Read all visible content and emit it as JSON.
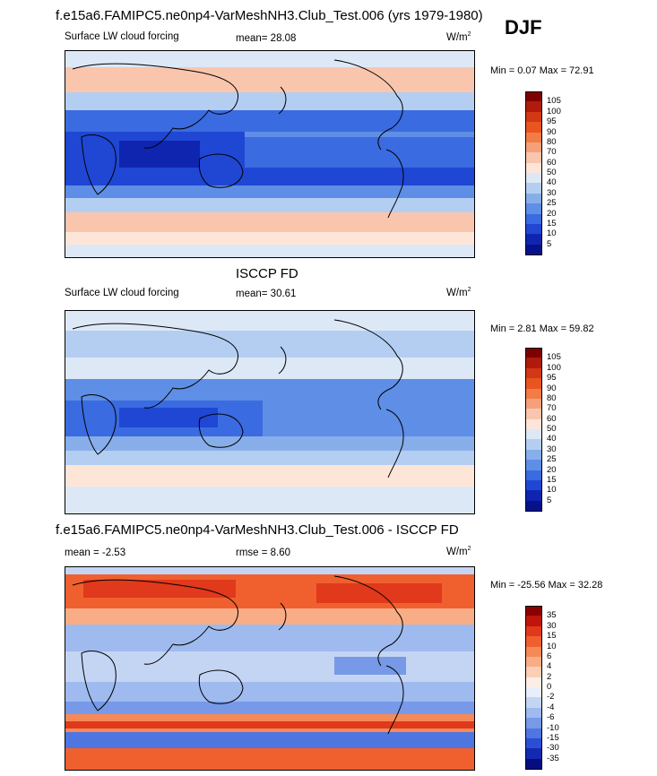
{
  "figure": {
    "season": "DJF",
    "panels": [
      {
        "id": "model",
        "heading": "f.e15a6.FAMIPC5.ne0np4-VarMeshNH3.Club_Test.006 (yrs 1979-1980)",
        "left_label": "Surface LW cloud forcing",
        "center_label": "mean=  28.08",
        "units": "W/m",
        "units_exp": "2",
        "minmax": "Min =   0.07 Max =  72.91",
        "colorbar": {
          "ticks": [
            "105",
            "100",
            "95",
            "90",
            "80",
            "70",
            "60",
            "50",
            "40",
            "30",
            "25",
            "20",
            "15",
            "10",
            "5"
          ],
          "colors": [
            "#800000",
            "#b01b0b",
            "#d23716",
            "#e8551f",
            "#f27c45",
            "#f5a07b",
            "#f9c6ad",
            "#fde6d8",
            "#dde8f7",
            "#b4cef2",
            "#88aeea",
            "#5f8ee6",
            "#3b6be0",
            "#1f47d4",
            "#0f25b0",
            "#06128b"
          ]
        }
      },
      {
        "id": "obs",
        "heading": "ISCCP FD",
        "left_label": "Surface LW cloud forcing",
        "center_label": "mean=  30.61",
        "units": "W/m",
        "units_exp": "2",
        "minmax": "Min =   2.81 Max =  59.82",
        "colorbar": {
          "ticks": [
            "105",
            "100",
            "95",
            "90",
            "80",
            "70",
            "60",
            "50",
            "40",
            "30",
            "25",
            "20",
            "15",
            "10",
            "5"
          ],
          "colors": [
            "#800000",
            "#b01b0b",
            "#d23716",
            "#e8551f",
            "#f27c45",
            "#f5a07b",
            "#f9c6ad",
            "#fde6d8",
            "#dde8f7",
            "#b4cef2",
            "#88aeea",
            "#5f8ee6",
            "#3b6be0",
            "#1f47d4",
            "#0f25b0",
            "#06128b"
          ]
        }
      },
      {
        "id": "diff",
        "heading": "f.e15a6.FAMIPC5.ne0np4-VarMeshNH3.Club_Test.006 - ISCCP FD",
        "left_label": "mean =  -2.53",
        "center_label": "rmse =   8.60",
        "units": "W/m",
        "units_exp": "2",
        "minmax": "Min = -25.56 Max =  32.28",
        "colorbar": {
          "ticks": [
            "35",
            "30",
            "15",
            "10",
            "6",
            "4",
            "2",
            "0",
            "-2",
            "-4",
            "-6",
            "-10",
            "-15",
            "-30",
            "-35"
          ],
          "colors": [
            "#8b0000",
            "#c0150c",
            "#e0391b",
            "#f0602f",
            "#f58a58",
            "#f8ad86",
            "#fbcfb5",
            "#fdeee5",
            "#e9eefb",
            "#c4d5f4",
            "#9fbaee",
            "#7799e7",
            "#4f75e0",
            "#2a4fd4",
            "#1329b0",
            "#060d80"
          ]
        }
      }
    ]
  },
  "chart_data": [
    {
      "type": "heatmap",
      "title": "Surface LW cloud forcing",
      "units": "W/m2",
      "season": "DJF",
      "mean": 28.08,
      "min": 0.07,
      "max": 72.91,
      "contour_levels": [
        5,
        10,
        15,
        20,
        25,
        30,
        40,
        50,
        60,
        70,
        80,
        90,
        95,
        100,
        105
      ]
    },
    {
      "type": "heatmap",
      "title": "ISCCP FD Surface LW cloud forcing",
      "units": "W/m2",
      "season": "DJF",
      "mean": 30.61,
      "min": 2.81,
      "max": 59.82,
      "contour_levels": [
        5,
        10,
        15,
        20,
        25,
        30,
        40,
        50,
        60,
        70,
        80,
        90,
        95,
        100,
        105
      ]
    },
    {
      "type": "heatmap",
      "title": "Difference (model - ISCCP FD)",
      "units": "W/m2",
      "season": "DJF",
      "mean": -2.53,
      "rmse": 8.6,
      "min": -25.56,
      "max": 32.28,
      "contour_levels": [
        -35,
        -30,
        -15,
        -10,
        -6,
        -4,
        -2,
        0,
        2,
        4,
        6,
        10,
        15,
        30,
        35
      ]
    }
  ]
}
